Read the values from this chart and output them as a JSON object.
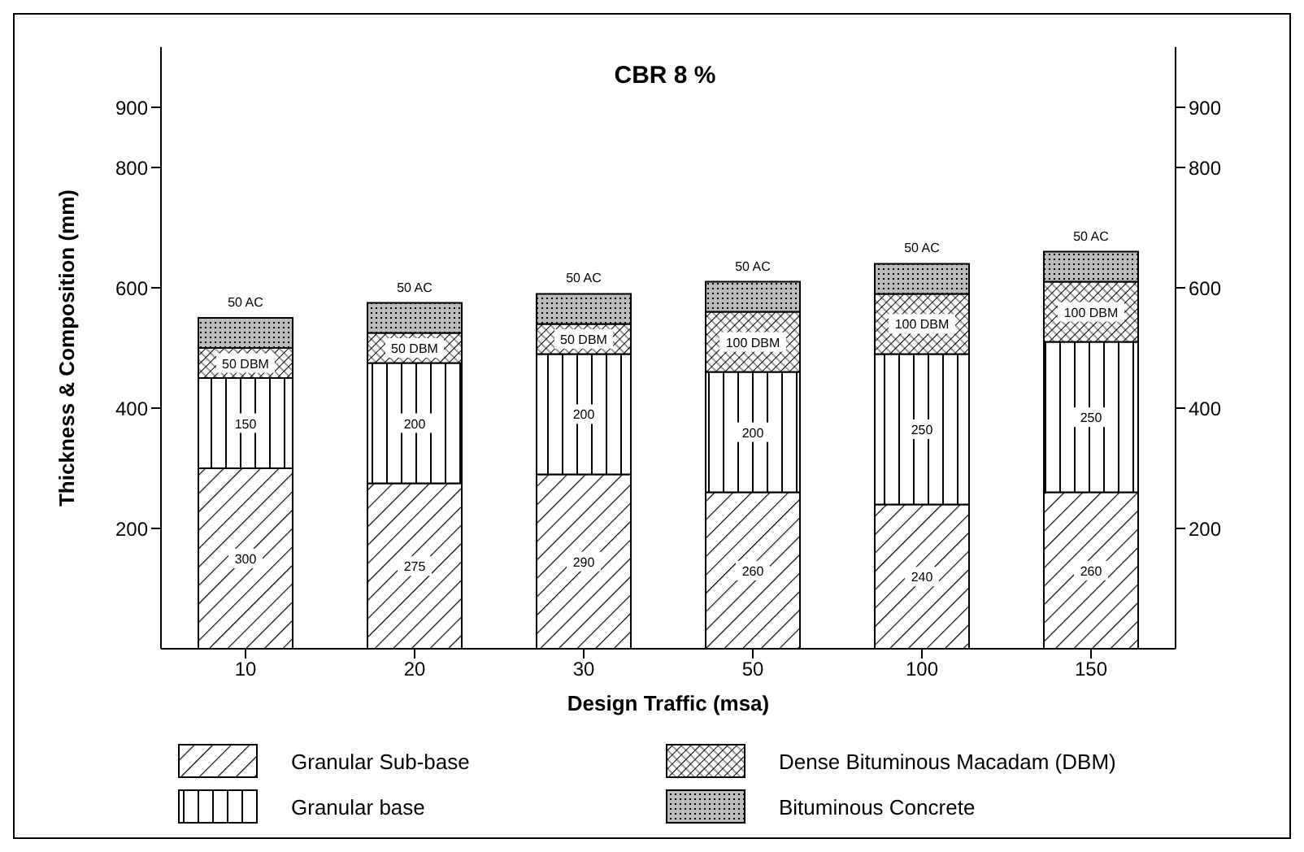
{
  "chart_data": {
    "type": "bar",
    "title": "CBR 8 %",
    "xlabel": "Design Traffic (msa)",
    "ylabel": "Thickness & Composition (mm)",
    "stacked": true,
    "categories": [
      "10",
      "20",
      "30",
      "50",
      "100",
      "150"
    ],
    "series": [
      {
        "name": "Granular Sub-base",
        "color": "#000000",
        "values": [
          300,
          275,
          290,
          260,
          240,
          260
        ],
        "value_labels": [
          "300",
          "275",
          "290",
          "260",
          "240",
          "260"
        ]
      },
      {
        "name": "Granular base",
        "color": "#000000",
        "values": [
          150,
          200,
          200,
          200,
          250,
          250
        ],
        "value_labels": [
          "150",
          "200",
          "200",
          "200",
          "250",
          "250"
        ]
      },
      {
        "name": "Dense Bituminous Macadam (DBM)",
        "color": "#000000",
        "values": [
          50,
          50,
          50,
          100,
          100,
          100
        ],
        "value_labels": [
          "50 DBM",
          "50 DBM",
          "50 DBM",
          "100 DBM",
          "100 DBM",
          "100 DBM"
        ]
      },
      {
        "name": "Bituminous Concrete",
        "color": "#000000",
        "values": [
          50,
          50,
          50,
          50,
          50,
          50
        ],
        "value_labels": [
          "50 AC",
          "50 AC",
          "50 AC",
          "50 AC",
          "50 AC",
          "50 AC"
        ]
      }
    ],
    "ylim": [
      0,
      1000
    ],
    "yticks": [
      200,
      400,
      600,
      800,
      900
    ],
    "y2lim": [
      0,
      1000
    ],
    "y2ticks": [
      200,
      400,
      600,
      800,
      900
    ],
    "grid": false,
    "legend": "bottom"
  }
}
